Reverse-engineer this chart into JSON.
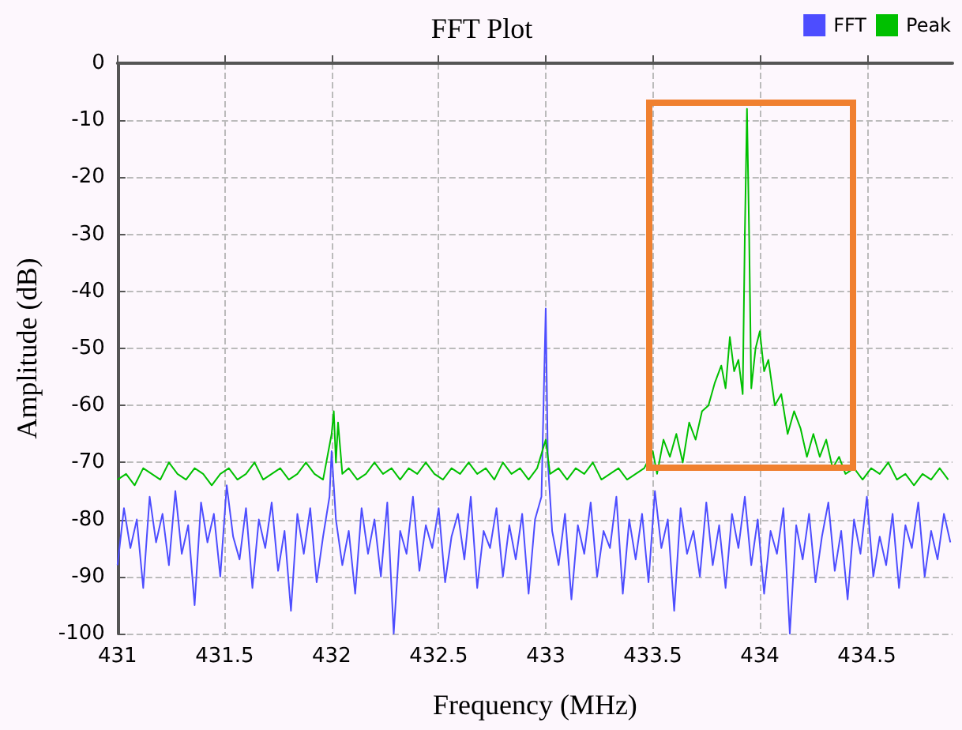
{
  "chart_data": {
    "type": "line",
    "title": "FFT Plot",
    "xlabel": "Frequency (MHz)",
    "ylabel": "Amplitude (dB)",
    "legend": "top right",
    "grid": true,
    "marker": "none",
    "line_style": "solid",
    "xlim": [
      431,
      434.9
    ],
    "xticks": [
      431,
      431.5,
      432,
      432.5,
      433,
      433.5,
      434,
      434.5
    ],
    "ylim": [
      -100,
      0
    ],
    "yticks": [
      -100,
      -90,
      -80,
      -70,
      -60,
      -50,
      -40,
      -30,
      -20,
      -10,
      0
    ],
    "series": [
      {
        "name": "FFT",
        "color": "#4d4dff",
        "x": [
          431.0,
          431.03,
          431.06,
          431.09,
          431.12,
          431.15,
          431.18,
          431.21,
          431.24,
          431.27,
          431.3,
          431.33,
          431.36,
          431.39,
          431.42,
          431.45,
          431.48,
          431.51,
          431.54,
          431.57,
          431.6,
          431.63,
          431.66,
          431.69,
          431.72,
          431.75,
          431.78,
          431.81,
          431.84,
          431.87,
          431.9,
          431.93,
          431.96,
          431.99,
          432.0,
          432.02,
          432.05,
          432.08,
          432.11,
          432.14,
          432.17,
          432.2,
          432.23,
          432.26,
          432.29,
          432.32,
          432.35,
          432.38,
          432.41,
          432.44,
          432.47,
          432.5,
          432.53,
          432.56,
          432.59,
          432.62,
          432.65,
          432.68,
          432.71,
          432.74,
          432.77,
          432.8,
          432.83,
          432.86,
          432.89,
          432.92,
          432.95,
          432.98,
          433.0,
          433.01,
          433.03,
          433.06,
          433.09,
          433.12,
          433.15,
          433.18,
          433.21,
          433.24,
          433.27,
          433.3,
          433.33,
          433.36,
          433.39,
          433.42,
          433.45,
          433.48,
          433.51,
          433.54,
          433.57,
          433.6,
          433.63,
          433.66,
          433.69,
          433.72,
          433.75,
          433.78,
          433.81,
          433.84,
          433.87,
          433.9,
          433.93,
          433.96,
          433.99,
          434.02,
          434.05,
          434.08,
          434.11,
          434.14,
          434.17,
          434.2,
          434.23,
          434.26,
          434.29,
          434.32,
          434.35,
          434.38,
          434.41,
          434.44,
          434.47,
          434.5,
          434.53,
          434.56,
          434.59,
          434.62,
          434.65,
          434.68,
          434.71,
          434.74,
          434.77,
          434.8,
          434.83,
          434.86,
          434.89
        ],
        "values": [
          -88,
          -78,
          -85,
          -80,
          -92,
          -76,
          -84,
          -79,
          -88,
          -75,
          -86,
          -81,
          -95,
          -77,
          -84,
          -79,
          -90,
          -74,
          -83,
          -87,
          -78,
          -92,
          -80,
          -85,
          -77,
          -89,
          -82,
          -96,
          -79,
          -86,
          -78,
          -91,
          -83,
          -76,
          -68,
          -80,
          -88,
          -82,
          -93,
          -78,
          -86,
          -80,
          -90,
          -77,
          -100,
          -82,
          -86,
          -76,
          -89,
          -81,
          -85,
          -78,
          -91,
          -83,
          -79,
          -87,
          -76,
          -92,
          -82,
          -85,
          -78,
          -90,
          -81,
          -87,
          -79,
          -93,
          -80,
          -76,
          -43,
          -70,
          -82,
          -88,
          -79,
          -94,
          -81,
          -86,
          -77,
          -90,
          -82,
          -85,
          -76,
          -93,
          -80,
          -87,
          -79,
          -91,
          -75,
          -85,
          -80,
          -96,
          -78,
          -86,
          -82,
          -90,
          -77,
          -88,
          -81,
          -92,
          -79,
          -85,
          -76,
          -88,
          -80,
          -93,
          -82,
          -86,
          -78,
          -100,
          -81,
          -87,
          -79,
          -91,
          -83,
          -77,
          -89,
          -82,
          -94,
          -80,
          -86,
          -76,
          -90,
          -83,
          -88,
          -79,
          -92,
          -81,
          -85,
          -77,
          -90,
          -82,
          -87,
          -79,
          -84
        ]
      },
      {
        "name": "Peak",
        "color": "#00c000",
        "x": [
          431.0,
          431.04,
          431.08,
          431.12,
          431.16,
          431.2,
          431.24,
          431.28,
          431.32,
          431.36,
          431.4,
          431.44,
          431.48,
          431.52,
          431.56,
          431.6,
          431.64,
          431.68,
          431.72,
          431.76,
          431.8,
          431.84,
          431.88,
          431.92,
          431.96,
          432.0,
          432.01,
          432.02,
          432.03,
          432.05,
          432.08,
          432.12,
          432.16,
          432.2,
          432.24,
          432.28,
          432.32,
          432.36,
          432.4,
          432.44,
          432.48,
          432.52,
          432.56,
          432.6,
          432.64,
          432.68,
          432.72,
          432.76,
          432.8,
          432.84,
          432.88,
          432.92,
          432.96,
          433.0,
          433.02,
          433.06,
          433.1,
          433.14,
          433.18,
          433.22,
          433.26,
          433.3,
          433.34,
          433.38,
          433.42,
          433.46,
          433.5,
          433.52,
          433.55,
          433.58,
          433.61,
          433.64,
          433.67,
          433.7,
          433.73,
          433.76,
          433.79,
          433.82,
          433.84,
          433.86,
          433.88,
          433.9,
          433.92,
          433.93,
          433.94,
          433.95,
          433.96,
          433.98,
          434.0,
          434.02,
          434.04,
          434.07,
          434.1,
          434.13,
          434.16,
          434.19,
          434.22,
          434.25,
          434.28,
          434.31,
          434.34,
          434.37,
          434.4,
          434.44,
          434.48,
          434.52,
          434.56,
          434.6,
          434.64,
          434.68,
          434.72,
          434.76,
          434.8,
          434.84,
          434.88
        ],
        "values": [
          -73,
          -72,
          -74,
          -71,
          -72,
          -73,
          -70,
          -72,
          -73,
          -71,
          -72,
          -74,
          -72,
          -71,
          -73,
          -72,
          -70,
          -73,
          -72,
          -71,
          -73,
          -72,
          -70,
          -72,
          -73,
          -65,
          -61,
          -70,
          -63,
          -72,
          -71,
          -73,
          -72,
          -70,
          -72,
          -71,
          -73,
          -71,
          -72,
          -70,
          -72,
          -73,
          -71,
          -72,
          -70,
          -72,
          -71,
          -73,
          -70,
          -72,
          -71,
          -73,
          -71,
          -66,
          -72,
          -71,
          -73,
          -71,
          -72,
          -70,
          -73,
          -72,
          -71,
          -73,
          -72,
          -71,
          -68,
          -72,
          -66,
          -69,
          -65,
          -70,
          -63,
          -66,
          -61,
          -60,
          -56,
          -53,
          -57,
          -48,
          -54,
          -52,
          -58,
          -30,
          -8,
          -30,
          -57,
          -50,
          -47,
          -54,
          -52,
          -60,
          -58,
          -65,
          -61,
          -64,
          -69,
          -65,
          -69,
          -66,
          -71,
          -69,
          -72,
          -71,
          -73,
          -71,
          -72,
          -70,
          -73,
          -72,
          -74,
          -72,
          -73,
          -71,
          -73
        ]
      }
    ]
  }
}
